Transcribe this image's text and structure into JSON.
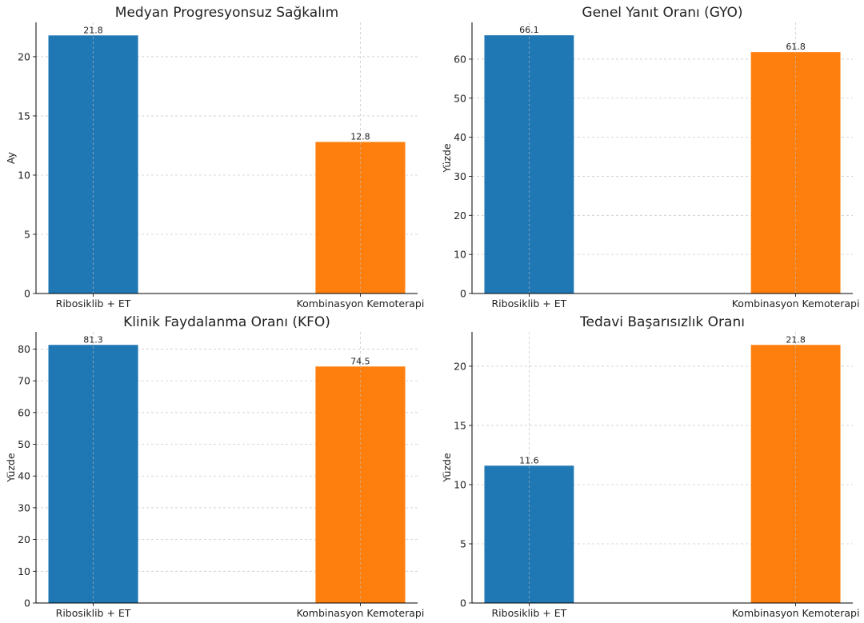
{
  "chart_data": [
    {
      "type": "bar",
      "title": "Medyan Progresyonsuz Sağkalım",
      "xlabel": "",
      "ylabel": "Ay",
      "categories": [
        "Ribosiklib + ET",
        "Kombinasyon Kemoterapi"
      ],
      "values": [
        21.8,
        12.8
      ],
      "value_labels": [
        "21.8",
        "12.8"
      ],
      "colors": [
        "#1f77b4",
        "#ff7f0e"
      ],
      "ylim": [
        0,
        22.9
      ],
      "yticks": [
        0,
        5,
        10,
        15,
        20
      ],
      "grid": true
    },
    {
      "type": "bar",
      "title": "Genel Yanıt Oranı (GYO)",
      "xlabel": "",
      "ylabel": "Yüzde",
      "categories": [
        "Ribosiklib + ET",
        "Kombinasyon Kemoterapi"
      ],
      "values": [
        66.1,
        61.8
      ],
      "value_labels": [
        "66.1",
        "61.8"
      ],
      "colors": [
        "#1f77b4",
        "#ff7f0e"
      ],
      "ylim": [
        0,
        69.4
      ],
      "yticks": [
        0,
        10,
        20,
        30,
        40,
        50,
        60
      ],
      "grid": true
    },
    {
      "type": "bar",
      "title": "Klinik Faydalanma Oranı (KFO)",
      "xlabel": "",
      "ylabel": "Yüzde",
      "categories": [
        "Ribosiklib + ET",
        "Kombinasyon Kemoterapi"
      ],
      "values": [
        81.3,
        74.5
      ],
      "value_labels": [
        "81.3",
        "74.5"
      ],
      "colors": [
        "#1f77b4",
        "#ff7f0e"
      ],
      "ylim": [
        0,
        85.4
      ],
      "yticks": [
        0,
        10,
        20,
        30,
        40,
        50,
        60,
        70,
        80
      ],
      "grid": true
    },
    {
      "type": "bar",
      "title": "Tedavi Başarısızlık Oranı",
      "xlabel": "",
      "ylabel": "Yüzde",
      "categories": [
        "Ribosiklib + ET",
        "Kombinasyon Kemoterapi"
      ],
      "values": [
        11.6,
        21.8
      ],
      "value_labels": [
        "11.6",
        "21.8"
      ],
      "colors": [
        "#1f77b4",
        "#ff7f0e"
      ],
      "ylim": [
        0,
        22.9
      ],
      "yticks": [
        0,
        5,
        10,
        15,
        20
      ],
      "grid": true
    }
  ]
}
